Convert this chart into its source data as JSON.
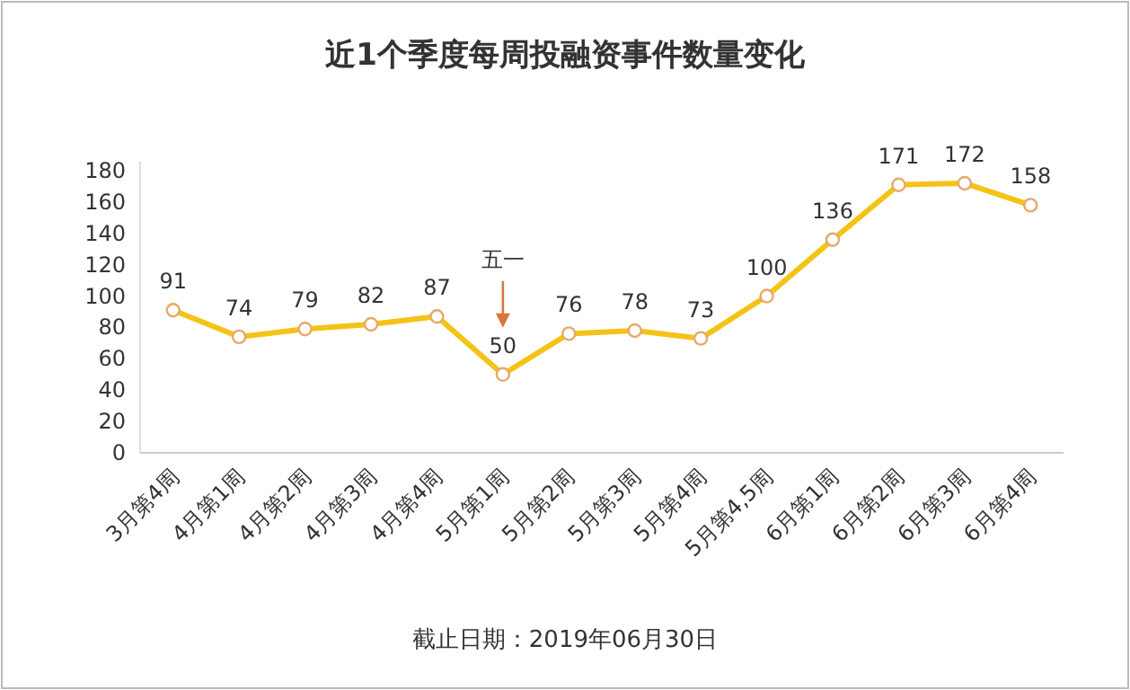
{
  "chart_data": {
    "type": "line",
    "title": "近1个季度每周投融资事件数量变化",
    "categories": [
      "3月第4周",
      "4月第1周",
      "4月第2周",
      "4月第3周",
      "4月第4周",
      "5月第1周",
      "5月第2周",
      "5月第3周",
      "5月第4周",
      "5月第4,5周",
      "6月第1周",
      "6月第2周",
      "6月第3周",
      "6月第4周"
    ],
    "series": [
      {
        "color": "#f3c317",
        "values": [
          91,
          74,
          79,
          82,
          87,
          50,
          76,
          78,
          73,
          100,
          136,
          171,
          172,
          158
        ]
      }
    ],
    "ylim": [
      0,
      180
    ],
    "yticks": [
      0,
      20,
      40,
      60,
      80,
      100,
      120,
      140,
      160,
      180
    ],
    "data_labels": true,
    "marker": "circle",
    "grid": false,
    "annotations": [
      {
        "text": "五一",
        "x": "5月第1周"
      },
      "截止日期：2019年06月30日"
    ]
  }
}
